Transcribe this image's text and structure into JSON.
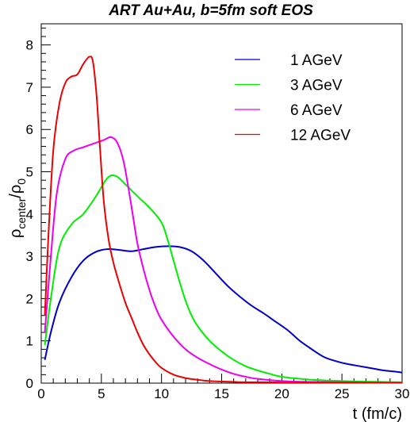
{
  "chart_data": {
    "type": "line",
    "title": "ART Au+Au, b=5fm soft EOS",
    "xlabel": "t (fm/c)",
    "ylabel": {
      "base1": "ρ",
      "sub1": "center",
      "sep": "/ρ",
      "sub2": "0"
    },
    "xlim": [
      0,
      30
    ],
    "ylim": [
      0,
      8.5
    ],
    "xticks": [
      0,
      5,
      10,
      15,
      20,
      25,
      30
    ],
    "yticks": [
      0,
      1,
      2,
      3,
      4,
      5,
      6,
      7,
      8
    ],
    "grid": false,
    "legend_position": "top-right",
    "series": [
      {
        "name": "1 AGeV",
        "color": "#0000cc",
        "points": [
          [
            0.3,
            0.55
          ],
          [
            0.8,
            1.2
          ],
          [
            1.5,
            1.9
          ],
          [
            2.5,
            2.5
          ],
          [
            3.5,
            2.9
          ],
          [
            4.5,
            3.1
          ],
          [
            5.5,
            3.17
          ],
          [
            6.5,
            3.15
          ],
          [
            7.5,
            3.12
          ],
          [
            8.5,
            3.17
          ],
          [
            9.5,
            3.22
          ],
          [
            10.5,
            3.24
          ],
          [
            11.5,
            3.22
          ],
          [
            12.5,
            3.12
          ],
          [
            13.5,
            2.9
          ],
          [
            14.5,
            2.6
          ],
          [
            15.5,
            2.3
          ],
          [
            16.5,
            2.05
          ],
          [
            17.5,
            1.83
          ],
          [
            18.5,
            1.65
          ],
          [
            19.5,
            1.45
          ],
          [
            20.5,
            1.25
          ],
          [
            21.5,
            1.0
          ],
          [
            22.5,
            0.8
          ],
          [
            23.5,
            0.62
          ],
          [
            24.5,
            0.52
          ],
          [
            25.5,
            0.45
          ],
          [
            26.5,
            0.4
          ],
          [
            27.5,
            0.35
          ],
          [
            28.5,
            0.3
          ],
          [
            29.5,
            0.27
          ],
          [
            30,
            0.25
          ]
        ]
      },
      {
        "name": "3 AGeV",
        "color": "#00ee00",
        "points": [
          [
            0.3,
            0.9
          ],
          [
            0.8,
            2.0
          ],
          [
            1.5,
            3.2
          ],
          [
            2.5,
            3.75
          ],
          [
            3.5,
            4.0
          ],
          [
            4.5,
            4.4
          ],
          [
            5.5,
            4.85
          ],
          [
            6.2,
            4.9
          ],
          [
            7.0,
            4.7
          ],
          [
            8.0,
            4.42
          ],
          [
            9.0,
            4.15
          ],
          [
            10.0,
            3.8
          ],
          [
            10.5,
            3.4
          ],
          [
            11.0,
            2.9
          ],
          [
            11.5,
            2.4
          ],
          [
            12.0,
            1.95
          ],
          [
            12.5,
            1.6
          ],
          [
            13.0,
            1.35
          ],
          [
            14.0,
            1.0
          ],
          [
            15.0,
            0.75
          ],
          [
            16.0,
            0.55
          ],
          [
            17.0,
            0.4
          ],
          [
            18.0,
            0.3
          ],
          [
            19.0,
            0.22
          ],
          [
            20.0,
            0.15
          ],
          [
            22.0,
            0.09
          ],
          [
            24.0,
            0.06
          ],
          [
            26.0,
            0.04
          ],
          [
            28.0,
            0.03
          ],
          [
            30,
            0.02
          ]
        ]
      },
      {
        "name": "6 AGeV",
        "color": "#ee00ee",
        "points": [
          [
            0.3,
            1.2
          ],
          [
            0.8,
            3.0
          ],
          [
            1.3,
            4.5
          ],
          [
            2.0,
            5.3
          ],
          [
            2.7,
            5.5
          ],
          [
            3.5,
            5.58
          ],
          [
            4.5,
            5.68
          ],
          [
            5.2,
            5.75
          ],
          [
            5.8,
            5.82
          ],
          [
            6.3,
            5.7
          ],
          [
            6.8,
            5.3
          ],
          [
            7.2,
            4.7
          ],
          [
            7.6,
            4.0
          ],
          [
            8.0,
            3.3
          ],
          [
            8.5,
            2.7
          ],
          [
            9.0,
            2.2
          ],
          [
            9.5,
            1.8
          ],
          [
            10.0,
            1.5
          ],
          [
            11.0,
            1.1
          ],
          [
            12.0,
            0.8
          ],
          [
            13.0,
            0.6
          ],
          [
            14.0,
            0.45
          ],
          [
            15.0,
            0.32
          ],
          [
            16.0,
            0.22
          ],
          [
            17.0,
            0.15
          ],
          [
            18.0,
            0.1
          ],
          [
            20.0,
            0.05
          ],
          [
            22.0,
            0.03
          ],
          [
            26.0,
            0.02
          ],
          [
            30,
            0.01
          ]
        ]
      },
      {
        "name": "12 AGeV",
        "color": "#ee0000",
        "points": [
          [
            0.3,
            1.6
          ],
          [
            0.6,
            3.5
          ],
          [
            1.0,
            5.5
          ],
          [
            1.5,
            6.6
          ],
          [
            2.0,
            7.1
          ],
          [
            2.5,
            7.25
          ],
          [
            3.0,
            7.3
          ],
          [
            3.5,
            7.55
          ],
          [
            4.0,
            7.72
          ],
          [
            4.3,
            7.6
          ],
          [
            4.6,
            6.8
          ],
          [
            4.9,
            5.5
          ],
          [
            5.2,
            4.3
          ],
          [
            5.6,
            3.4
          ],
          [
            6.0,
            2.85
          ],
          [
            6.5,
            2.35
          ],
          [
            7.0,
            1.9
          ],
          [
            7.5,
            1.55
          ],
          [
            8.0,
            1.2
          ],
          [
            8.5,
            0.9
          ],
          [
            9.0,
            0.68
          ],
          [
            9.5,
            0.5
          ],
          [
            10.0,
            0.36
          ],
          [
            11.0,
            0.2
          ],
          [
            12.0,
            0.12
          ],
          [
            13.0,
            0.08
          ],
          [
            14.0,
            0.05
          ],
          [
            16.0,
            0.03
          ],
          [
            18.0,
            0.02
          ],
          [
            30,
            0.01
          ]
        ]
      }
    ]
  }
}
